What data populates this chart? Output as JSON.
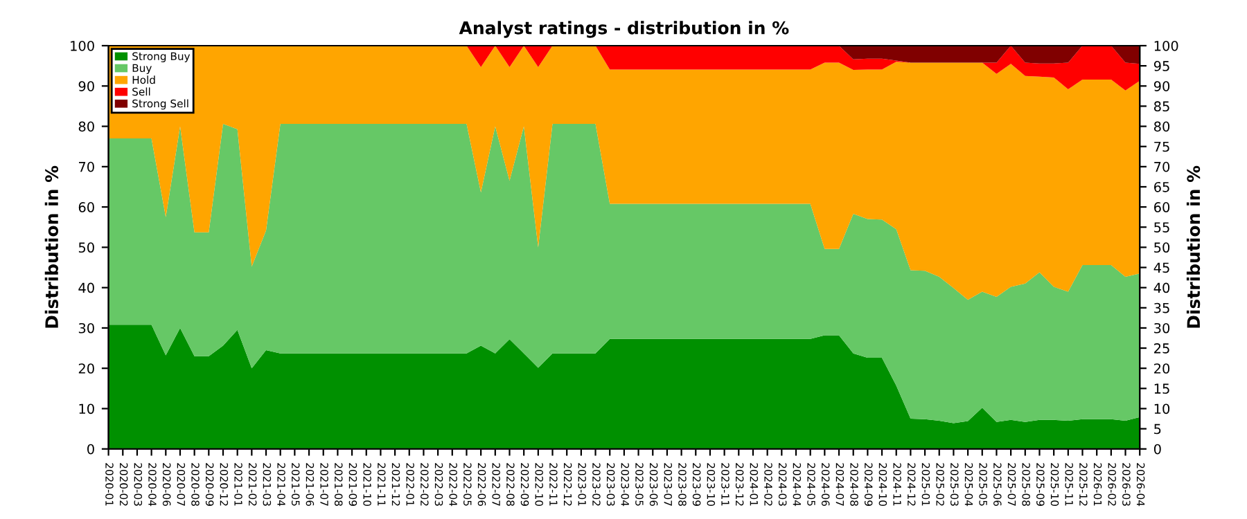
{
  "chart_data": {
    "type": "area",
    "stacked": true,
    "title": "Analyst ratings - distribution in %",
    "ylabel": "Distribution in %",
    "y2label": "Distribution in %",
    "categories": [
      "2020-01",
      "2020-02",
      "2020-03",
      "2020-04",
      "2020-06",
      "2020-07",
      "2020-08",
      "2020-09",
      "2020-12",
      "2021-01",
      "2021-02",
      "2021-03",
      "2021-04",
      "2021-05",
      "2021-06",
      "2021-07",
      "2021-08",
      "2021-09",
      "2021-10",
      "2021-11",
      "2021-12",
      "2022-01",
      "2022-02",
      "2022-03",
      "2022-04",
      "2022-05",
      "2022-06",
      "2022-07",
      "2022-08",
      "2022-09",
      "2022-10",
      "2022-11",
      "2022-12",
      "2023-01",
      "2023-02",
      "2023-03",
      "2023-04",
      "2023-05",
      "2023-06",
      "2023-07",
      "2023-08",
      "2023-09",
      "2023-10",
      "2023-11",
      "2023-12",
      "2024-01",
      "2024-02",
      "2024-03",
      "2024-04",
      "2024-05",
      "2024-06",
      "2024-07",
      "2024-08",
      "2024-09",
      "2024-10",
      "2024-11",
      "2024-12",
      "2025-01",
      "2025-02",
      "2025-03",
      "2025-04",
      "2025-05",
      "2025-06",
      "2025-07",
      "2025-08",
      "2025-09",
      "2025-10",
      "2025-11",
      "2025-12",
      "2026-01",
      "2026-02",
      "2026-03",
      "2026-04"
    ],
    "series": [
      {
        "name": "Strong Buy",
        "color": "#009000",
        "values": [
          30.8,
          30.8,
          30.8,
          30.8,
          23.2,
          30,
          23,
          23,
          25.6,
          29.5,
          20,
          24.5,
          23.7,
          23.7,
          23.7,
          23.7,
          23.7,
          23.7,
          23.7,
          23.7,
          23.7,
          23.7,
          23.7,
          23.7,
          23.7,
          23.7,
          25.6,
          23.7,
          27.2,
          23.7,
          20.1,
          23.7,
          23.7,
          23.7,
          23.7,
          27.3,
          27.3,
          27.3,
          27.3,
          27.3,
          27.3,
          27.3,
          27.3,
          27.3,
          27.3,
          27.3,
          27.3,
          27.3,
          27.3,
          27.3,
          28.2,
          28.2,
          23.7,
          22.6,
          22.6,
          15.7,
          7.5,
          7.4,
          7.0,
          6.4,
          6.9,
          10.2,
          6.7,
          7.2,
          6.7,
          7.2,
          7.2,
          7.0,
          7.4,
          7.4,
          7.4,
          7.0,
          7.9
        ]
      },
      {
        "name": "Buy",
        "color": "#66c866",
        "values": [
          46.2,
          46.2,
          46.2,
          46.2,
          34.3,
          50,
          30.7,
          30.7,
          55,
          49.8,
          25.2,
          29.7,
          56.9,
          56.9,
          56.9,
          56.9,
          56.9,
          56.9,
          56.9,
          56.9,
          56.9,
          56.9,
          56.9,
          56.9,
          56.9,
          56.9,
          38,
          56.3,
          39.3,
          56.3,
          29.9,
          56.9,
          56.9,
          56.9,
          56.9,
          33.5,
          33.5,
          33.5,
          33.5,
          33.5,
          33.5,
          33.5,
          33.5,
          33.5,
          33.5,
          33.5,
          33.5,
          33.5,
          33.5,
          33.5,
          21.4,
          21.4,
          34.6,
          34.4,
          34.3,
          38.8,
          36.8,
          36.8,
          35.7,
          33.5,
          30.1,
          28.8,
          31,
          33,
          34.3,
          36.6,
          33,
          32,
          38.2,
          38.2,
          38.2,
          35.7,
          35.6
        ]
      },
      {
        "name": "Hold",
        "color": "#ffa500",
        "values": [
          23,
          23,
          23,
          23,
          42.5,
          20,
          46.3,
          46.3,
          19.4,
          20.7,
          54.8,
          45.8,
          19.4,
          19.4,
          19.4,
          19.4,
          19.4,
          19.4,
          19.4,
          19.4,
          19.4,
          19.4,
          19.4,
          19.4,
          19.4,
          19.4,
          31.1,
          20,
          28.2,
          20,
          44.7,
          19.4,
          19.4,
          19.4,
          19.4,
          33.3,
          33.3,
          33.3,
          33.3,
          33.3,
          33.3,
          33.3,
          33.3,
          33.3,
          33.3,
          33.3,
          33.3,
          33.3,
          33.3,
          33.3,
          46.2,
          46.2,
          35.7,
          37.1,
          37.2,
          41.5,
          51.5,
          51.6,
          53.1,
          55.9,
          58.8,
          56.8,
          55.3,
          55.3,
          51.5,
          48.5,
          51.9,
          50.2,
          46,
          46,
          46,
          46.2,
          47.8
        ]
      },
      {
        "name": "Sell",
        "color": "#ff0000",
        "values": [
          0,
          0,
          0,
          0,
          0,
          0,
          0,
          0,
          0,
          0,
          0,
          0,
          0,
          0,
          0,
          0,
          0,
          0,
          0,
          0,
          0,
          0,
          0,
          0,
          0,
          0,
          5.3,
          0,
          5.3,
          0,
          5.3,
          0,
          0,
          0,
          0,
          5.9,
          5.9,
          5.9,
          5.9,
          5.9,
          5.9,
          5.9,
          5.9,
          5.9,
          5.9,
          5.9,
          5.9,
          5.9,
          5.9,
          5.9,
          4.2,
          4.2,
          2.6,
          2.7,
          2.7,
          0.3,
          0,
          0,
          0,
          0,
          0,
          0,
          2.8,
          4.5,
          3.3,
          3.3,
          3.5,
          6.6,
          8.4,
          8.4,
          8.4,
          6.9,
          4.2
        ]
      },
      {
        "name": "Strong Sell",
        "color": "#800000",
        "values": [
          0,
          0,
          0,
          0,
          0,
          0,
          0,
          0,
          0,
          0,
          0,
          0,
          0,
          0,
          0,
          0,
          0,
          0,
          0,
          0,
          0,
          0,
          0,
          0,
          0,
          0,
          0,
          0,
          0,
          0,
          0,
          0,
          0,
          0,
          0,
          0,
          0,
          0,
          0,
          0,
          0,
          0,
          0,
          0,
          0,
          0,
          0,
          0,
          0,
          0,
          0,
          0,
          3.4,
          3.2,
          3.2,
          3.7,
          4.2,
          4.2,
          4.2,
          4.2,
          4.2,
          4.2,
          4.2,
          0,
          4.2,
          4.4,
          4.4,
          4.2,
          0,
          0,
          0,
          4.2,
          4.5
        ]
      }
    ],
    "ylim": [
      0,
      100
    ],
    "yticks": [
      0,
      10,
      20,
      30,
      40,
      50,
      60,
      70,
      80,
      90,
      100
    ],
    "y2lim": [
      0,
      100
    ],
    "y2ticks": [
      0,
      5,
      10,
      15,
      20,
      25,
      30,
      35,
      40,
      45,
      50,
      55,
      60,
      65,
      70,
      75,
      80,
      85,
      90,
      95,
      100
    ],
    "grid": "y",
    "legend": "top left"
  }
}
